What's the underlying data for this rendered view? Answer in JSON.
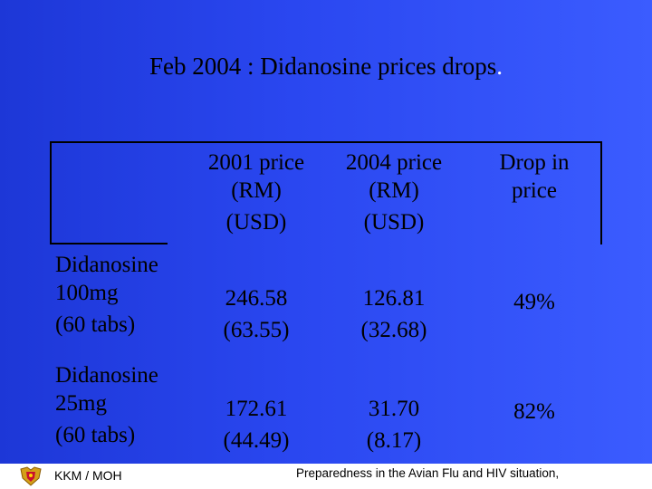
{
  "slide": {
    "title": "Feb 2004 : Didanosine prices drops",
    "title_dot": "."
  },
  "table": {
    "headers": [
      {
        "line1": "2001 price",
        "line2": "(RM)",
        "line3": "(USD)"
      },
      {
        "line1": "2004 price",
        "line2": "(RM)",
        "line3": "(USD)"
      },
      {
        "line1": "Drop in",
        "line2": "price",
        "line3": ""
      }
    ],
    "rows": [
      {
        "name_line1": "Didanosine",
        "name_line2": "100mg",
        "name_line3": "(60 tabs)",
        "p2001_rm": "246.58",
        "p2001_usd": "(63.55)",
        "p2004_rm": "126.81",
        "p2004_usd": "(32.68)",
        "drop": "49%"
      },
      {
        "name_line1": "Didanosine",
        "name_line2": "25mg",
        "name_line3": "(60 tabs)",
        "p2001_rm": "172.61",
        "p2001_usd": "(44.49)",
        "p2004_rm": "31.70",
        "p2004_usd": "(8.17)",
        "drop": "82%"
      }
    ]
  },
  "footer": {
    "org": "KKM / MOH",
    "caption": "Preparedness in the Avian Flu and HIV situation,",
    "logo_icon": "crest-icon"
  },
  "colors": {
    "background_left": "#1d37d7",
    "background_right": "#3b5cff",
    "text": "#000000",
    "footer_bg": "#ffffff"
  }
}
